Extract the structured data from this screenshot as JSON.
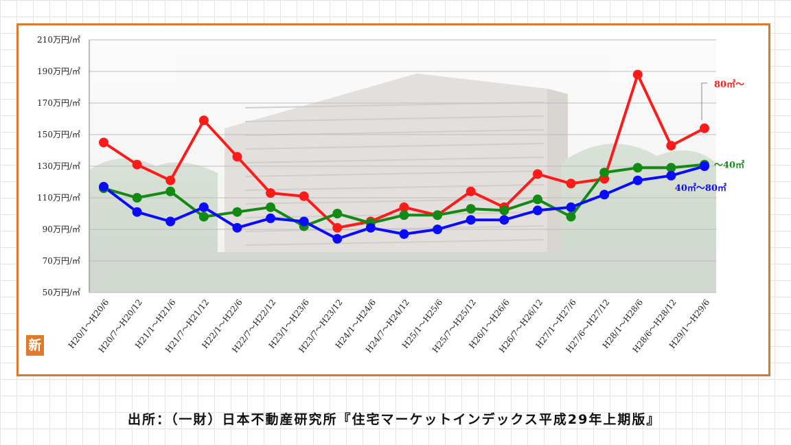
{
  "chart_data": {
    "type": "line",
    "title": "",
    "xlabel": "",
    "ylabel": "",
    "ylim": [
      50,
      210
    ],
    "yticks": [
      "210万円/㎡",
      "190万円/㎡",
      "170万円/㎡",
      "150万円/㎡",
      "130万円/㎡",
      "110万円/㎡",
      "90万円/㎡",
      "70万円/㎡",
      "50万円/㎡"
    ],
    "ytick_values": [
      210,
      190,
      170,
      150,
      130,
      110,
      90,
      70,
      50
    ],
    "categories": [
      "H20/1～H20/6",
      "H20/7～H20/12",
      "H21/1～H21/6",
      "H21/7～H21/12",
      "H22/1～H22/6",
      "H22/7～H22/12",
      "H23/1～H23/6",
      "H23/7～H23/12",
      "H24/1～H24/6",
      "H24/7～H24/12",
      "H25/1～H25/6",
      "H25/7～H25/12",
      "H26/1～H26/6",
      "H26/7～H26/12",
      "H27/1～H27/6",
      "H27/6～H27/12",
      "H28/1～H28/6",
      "H28/6～H28/12",
      "H29/1～H29/6"
    ],
    "grid": true,
    "series": [
      {
        "name": "80㎡～",
        "color": "#ff1a1a",
        "values": [
          145,
          131,
          121,
          159,
          136,
          113,
          111,
          91,
          95,
          104,
          99,
          114,
          104,
          125,
          119,
          122,
          188,
          143,
          154
        ]
      },
      {
        "name": "～40㎡",
        "color": "#138a13",
        "values": [
          116,
          110,
          114,
          98,
          101,
          104,
          92,
          100,
          94,
          99,
          99,
          103,
          102,
          109,
          98,
          126,
          129,
          129,
          131
        ]
      },
      {
        "name": "40㎡～80㎡",
        "color": "#0a0aff",
        "values": [
          117,
          101,
          95,
          104,
          91,
          97,
          95,
          84,
          91,
          87,
          90,
          96,
          96,
          102,
          104,
          112,
          121,
          124,
          130
        ]
      }
    ]
  },
  "badge": {
    "text": "新",
    "color": "#e07a2a"
  },
  "source": "出所：（一財）日本不動産研究所『住宅マーケットインデックス平成29年上期版』"
}
